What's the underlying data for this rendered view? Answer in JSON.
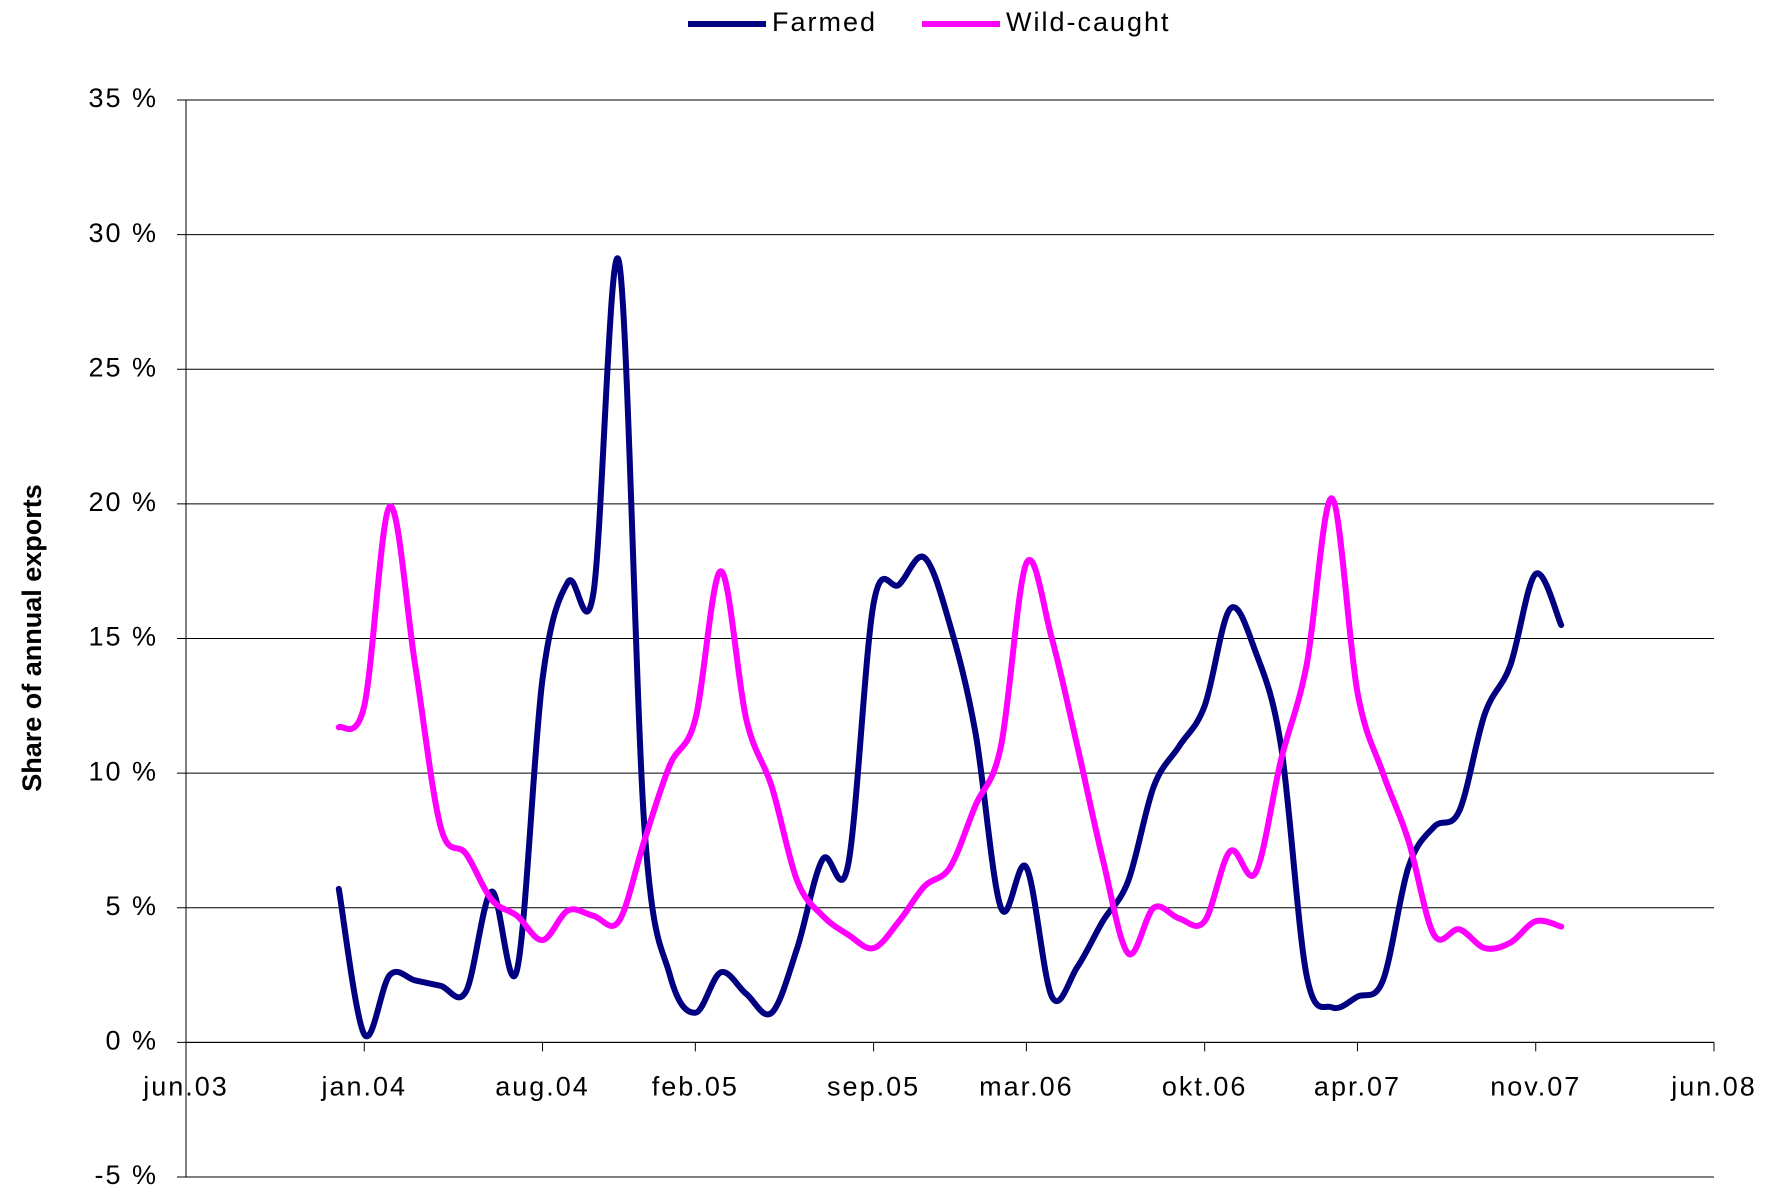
{
  "chart_data": {
    "type": "line",
    "y_label": "Share of annual exports",
    "x": [
      "2003-12",
      "2004-01",
      "2004-02",
      "2004-03",
      "2004-04",
      "2004-05",
      "2004-06",
      "2004-07",
      "2004-08",
      "2004-09",
      "2004-10",
      "2004-11",
      "2004-12",
      "2005-01",
      "2005-02",
      "2005-03",
      "2005-04",
      "2005-05",
      "2005-06",
      "2005-07",
      "2005-08",
      "2005-09",
      "2005-10",
      "2005-11",
      "2005-12",
      "2006-01",
      "2006-02",
      "2006-03",
      "2006-04",
      "2006-05",
      "2006-06",
      "2006-07",
      "2006-08",
      "2006-09",
      "2006-10",
      "2006-11",
      "2006-12",
      "2007-01",
      "2007-02",
      "2007-03",
      "2007-04",
      "2007-05",
      "2007-06",
      "2007-07",
      "2007-08",
      "2007-09",
      "2007-10",
      "2007-11",
      "2007-12"
    ],
    "series": [
      {
        "name": "Farmed",
        "color": "#000080",
        "values": [
          5.7,
          0.3,
          2.5,
          2.3,
          2.1,
          1.9,
          5.6,
          2.7,
          13.5,
          17.1,
          16.7,
          29.0,
          8.0,
          2.5,
          1.1,
          2.6,
          1.8,
          1.1,
          3.5,
          6.8,
          6.6,
          16.3,
          17.0,
          18.0,
          15.5,
          11.5,
          5.0,
          6.5,
          1.7,
          2.8,
          4.5,
          6.0,
          9.5,
          11.0,
          12.5,
          16.1,
          14.5,
          11.0,
          2.5,
          1.3,
          1.7,
          2.3,
          6.5,
          8.0,
          8.6,
          12.2,
          14.0,
          17.4,
          15.5
        ]
      },
      {
        "name": "Wild-caught",
        "color": "#ff00ff",
        "values": [
          11.7,
          12.5,
          19.9,
          14.0,
          8.0,
          7.0,
          5.3,
          4.7,
          3.8,
          4.9,
          4.7,
          4.5,
          7.5,
          10.3,
          12.0,
          17.5,
          12.0,
          9.5,
          6.0,
          4.7,
          4.0,
          3.5,
          4.5,
          5.8,
          6.5,
          8.8,
          11.0,
          17.8,
          15.0,
          11.0,
          6.8,
          3.3,
          5.0,
          4.6,
          4.5,
          7.1,
          6.3,
          10.5,
          14.0,
          20.2,
          13.0,
          10.0,
          7.5,
          4.0,
          4.2,
          3.5,
          3.7,
          4.5,
          4.3
        ]
      }
    ],
    "xlim": [
      "2003-06",
      "2008-06"
    ],
    "xticks": [
      {
        "value": "2003-06",
        "label": "jun.03"
      },
      {
        "value": "2004-01",
        "label": "jan.04"
      },
      {
        "value": "2004-08",
        "label": "aug.04"
      },
      {
        "value": "2005-02",
        "label": "feb.05"
      },
      {
        "value": "2005-09",
        "label": "sep.05"
      },
      {
        "value": "2006-03",
        "label": "mar.06"
      },
      {
        "value": "2006-10",
        "label": "okt.06"
      },
      {
        "value": "2007-04",
        "label": "apr.07"
      },
      {
        "value": "2007-11",
        "label": "nov.07"
      },
      {
        "value": "2008-06",
        "label": "jun.08"
      }
    ],
    "ylim": [
      -5,
      35
    ],
    "yticks": [
      {
        "value": -5,
        "label": "-5 %"
      },
      {
        "value": 0,
        "label": "0 %"
      },
      {
        "value": 5,
        "label": "5 %"
      },
      {
        "value": 10,
        "label": "10 %"
      },
      {
        "value": 15,
        "label": "15 %"
      },
      {
        "value": 20,
        "label": "20 %"
      },
      {
        "value": 25,
        "label": "25 %"
      },
      {
        "value": 30,
        "label": "30 %"
      },
      {
        "value": 35,
        "label": "35 %"
      }
    ],
    "grid": true,
    "legend": "top"
  }
}
